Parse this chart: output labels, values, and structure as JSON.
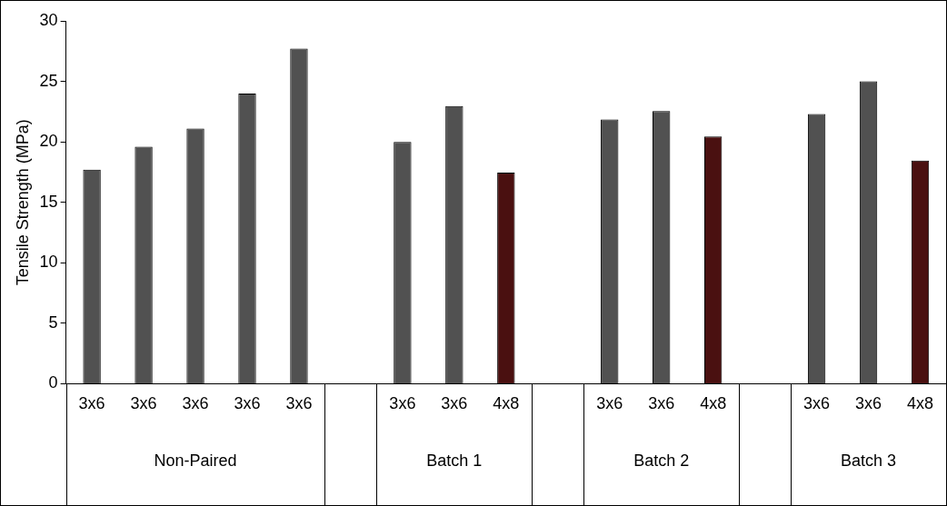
{
  "chart_data": {
    "type": "bar",
    "ylabel": "Tensile Strength (MPa)",
    "categories": [
      "3x6",
      "3x6",
      "3x6",
      "3x6",
      "3x6",
      null,
      "3x6",
      "3x6",
      "4x8",
      null,
      "3x6",
      "3x6",
      "4x8",
      null,
      "3x6",
      "3x6",
      "4x8"
    ],
    "values": [
      17.7,
      19.6,
      21.1,
      24.0,
      27.7,
      null,
      20.0,
      22.95,
      17.45,
      null,
      21.85,
      22.55,
      20.45,
      null,
      22.3,
      25.0,
      18.45
    ],
    "colors": [
      "#515151",
      "#515151",
      "#515151",
      "#515151",
      "#515151",
      null,
      "#515151",
      "#515151",
      "#4a1010",
      null,
      "#515151",
      "#515151",
      "#4a1010",
      null,
      "#515151",
      "#515151",
      "#4a1010"
    ],
    "ylim": [
      0,
      30
    ],
    "yticks": [
      0,
      5,
      10,
      15,
      20,
      25,
      30
    ],
    "grid": false,
    "legend": false,
    "annotations": [
      "Non-Paired",
      "Batch 1",
      "Batch 2",
      "Batch 3"
    ]
  }
}
